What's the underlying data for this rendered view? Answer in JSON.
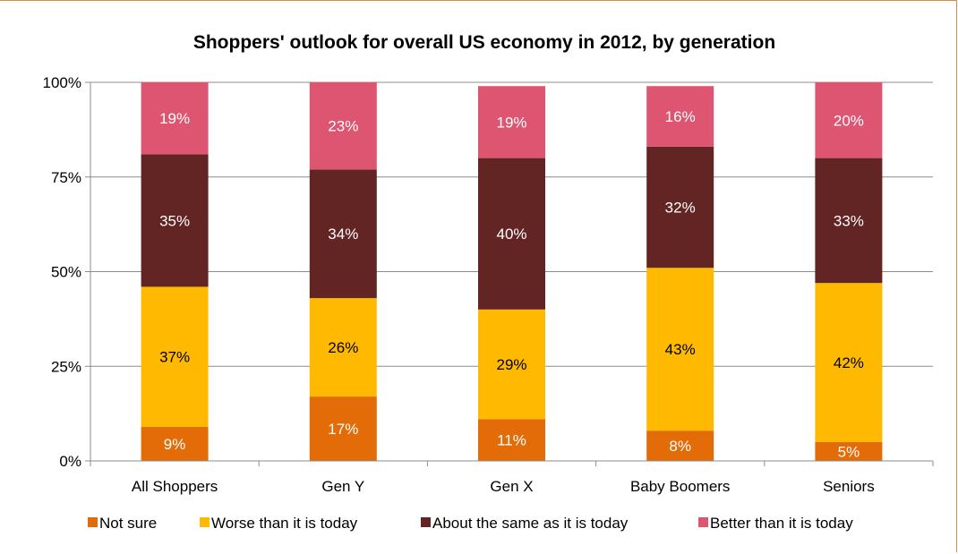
{
  "chart_data": {
    "type": "bar",
    "stacked": true,
    "title": "Shoppers' outlook for overall US economy in 2012, by generation",
    "categories": [
      "All Shoppers",
      "Gen Y",
      "Gen X",
      "Baby Boomers",
      "Seniors"
    ],
    "series": [
      {
        "name": "Not sure",
        "color": "#e36c09",
        "label_color": "#ffffff",
        "values": [
          9,
          17,
          11,
          8,
          5
        ],
        "labels": [
          "9%",
          "17%",
          "11%",
          "8%",
          "5%"
        ]
      },
      {
        "name": "Worse than it is today",
        "color": "#ffb900",
        "label_color": "#000000",
        "values": [
          37,
          26,
          29,
          43,
          42
        ],
        "labels": [
          "37%",
          "26%",
          "29%",
          "43%",
          "42%"
        ]
      },
      {
        "name": "About the same as it is today",
        "color": "#632523",
        "label_color": "#ffffff",
        "values": [
          35,
          34,
          40,
          32,
          33
        ],
        "labels": [
          "35%",
          "34%",
          "40%",
          "32%",
          "33%"
        ]
      },
      {
        "name": "Better than it is today",
        "color": "#dd5570",
        "label_color": "#ffffff",
        "values": [
          19,
          23,
          19,
          16,
          20
        ],
        "labels": [
          "19%",
          "23%",
          "19%",
          "16%",
          "20%"
        ]
      }
    ],
    "ylim": [
      0,
      100
    ],
    "yticks": [
      {
        "value": 0,
        "label": "0%"
      },
      {
        "value": 25,
        "label": "25%"
      },
      {
        "value": 50,
        "label": "50%"
      },
      {
        "value": 75,
        "label": "75%"
      },
      {
        "value": 100,
        "label": "100%"
      }
    ],
    "grid": true,
    "legend_position": "bottom"
  }
}
